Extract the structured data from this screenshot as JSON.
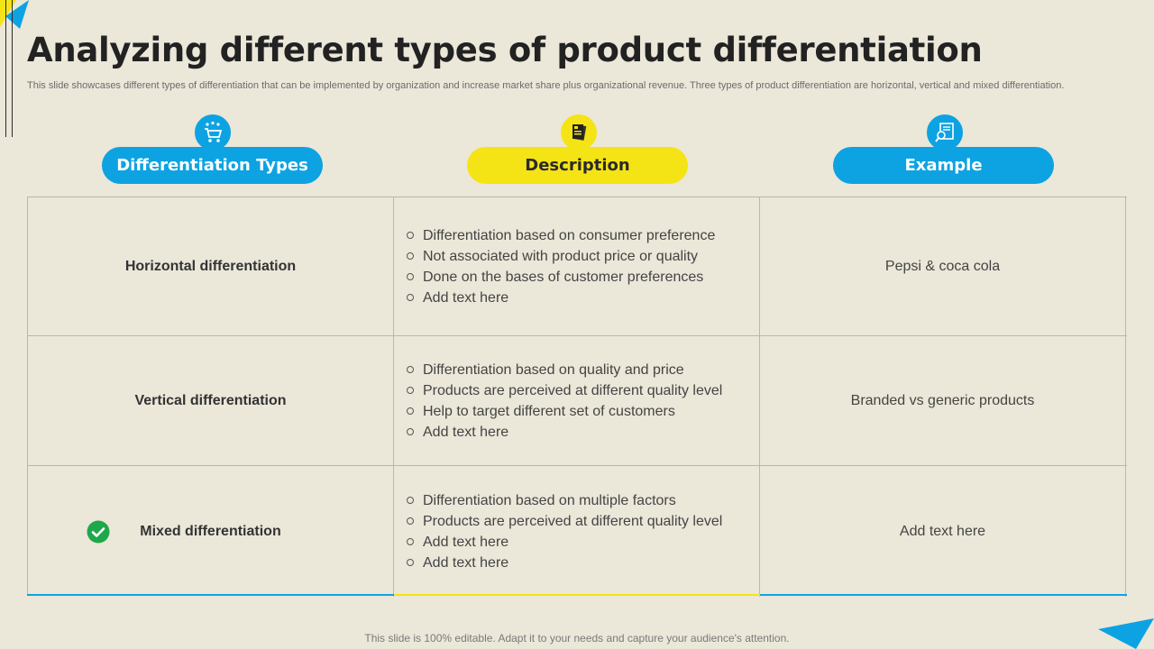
{
  "title": "Analyzing different types of product differentiation",
  "subtitle": "This slide showcases different types of differentiation that can be implemented by organization and increase market share plus organizational revenue. Three types of product differentiation are horizontal, vertical and mixed differentiation.",
  "headers": [
    {
      "label": "Differentiation Types",
      "icon": "shopping-cart-icon",
      "color": "#0da3e2"
    },
    {
      "label": "Description",
      "icon": "document-icon",
      "color": "#f5e415"
    },
    {
      "label": "Example",
      "icon": "search-document-icon",
      "color": "#0da3e2"
    }
  ],
  "rows": [
    {
      "type": "Horizontal differentiation",
      "points": [
        "Differentiation based on consumer preference",
        "Not associated with product price or quality",
        "Done on the bases of customer preferences",
        "Add text here"
      ],
      "example": "Pepsi & coca cola"
    },
    {
      "type": "Vertical differentiation",
      "points": [
        "Differentiation based on quality and price",
        "Products are perceived at different quality level",
        "Help to target different set of customers",
        "Add text here"
      ],
      "example": "Branded vs generic products"
    },
    {
      "type": "Mixed differentiation",
      "points": [
        "Differentiation based on multiple factors",
        "Products are perceived at different quality level",
        "Add text here",
        "Add text here"
      ],
      "example": "Add text here",
      "status_icon": "check-circle-icon"
    }
  ],
  "footer": "This slide is 100% editable. Adapt it to your needs and capture your audience's attention.",
  "colors": {
    "blue": "#0da3e2",
    "yellow": "#f5e415",
    "green": "#1fa84b",
    "background": "#ebe7d9"
  }
}
